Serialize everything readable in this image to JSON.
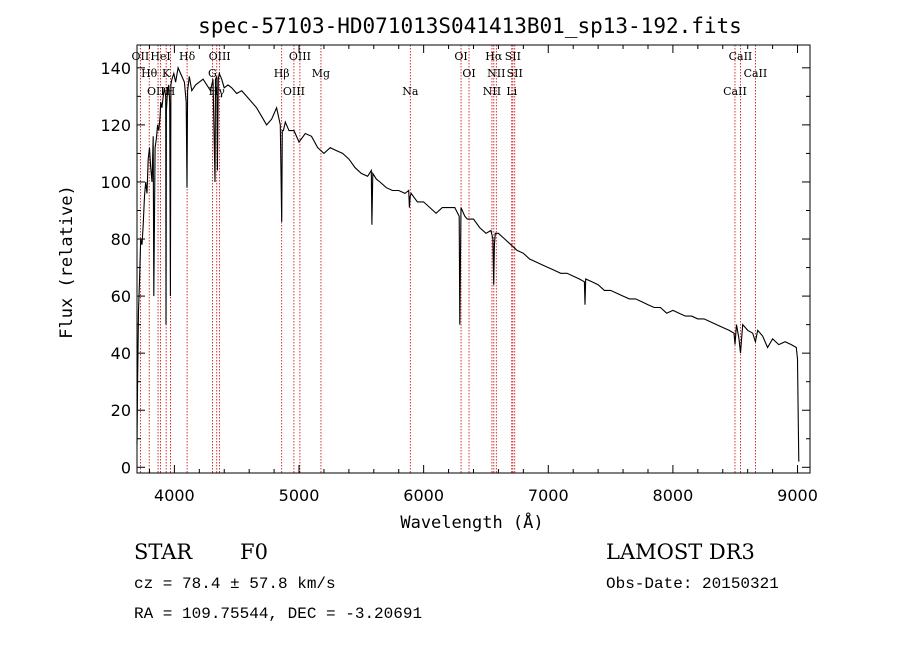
{
  "chart_data": {
    "type": "line",
    "title": "spec-57103-HD071013S041413B01_sp13-192.fits",
    "xlabel": "Wavelength (Å)",
    "ylabel": "Flux (relative)",
    "xlim": [
      3700,
      9100
    ],
    "ylim": [
      -2,
      148
    ],
    "xticks": [
      4000,
      5000,
      6000,
      7000,
      8000,
      9000
    ],
    "yticks": [
      0,
      20,
      40,
      60,
      80,
      100,
      120,
      140
    ],
    "series": [
      {
        "name": "spectrum",
        "x": [
          3700,
          3705,
          3712,
          3720,
          3730,
          3740,
          3750,
          3760,
          3770,
          3780,
          3790,
          3800,
          3810,
          3820,
          3830,
          3835,
          3845,
          3855,
          3865,
          3875,
          3885,
          3890,
          3900,
          3910,
          3920,
          3930,
          3933,
          3936,
          3945,
          3955,
          3962,
          3968,
          3972,
          3980,
          3995,
          4010,
          4030,
          4050,
          4080,
          4095,
          4101,
          4106,
          4120,
          4140,
          4170,
          4200,
          4230,
          4260,
          4290,
          4310,
          4326,
          4330,
          4340,
          4345,
          4352,
          4360,
          4380,
          4400,
          4430,
          4460,
          4500,
          4540,
          4580,
          4620,
          4660,
          4700,
          4740,
          4780,
          4820,
          4850,
          4861,
          4866,
          4875,
          4890,
          4920,
          4960,
          5000,
          5050,
          5100,
          5150,
          5200,
          5250,
          5300,
          5350,
          5400,
          5450,
          5500,
          5550,
          5580,
          5585,
          5592,
          5620,
          5650,
          5700,
          5750,
          5800,
          5850,
          5880,
          5886,
          5892,
          5900,
          5950,
          6000,
          6050,
          6100,
          6150,
          6200,
          6250,
          6285,
          6290,
          6300,
          6330,
          6350,
          6400,
          6450,
          6500,
          6540,
          6556,
          6562,
          6568,
          6575,
          6600,
          6650,
          6700,
          6750,
          6800,
          6850,
          6900,
          6950,
          7000,
          7050,
          7100,
          7150,
          7200,
          7250,
          7290,
          7295,
          7300,
          7350,
          7400,
          7450,
          7500,
          7550,
          7600,
          7650,
          7700,
          7750,
          7800,
          7850,
          7900,
          7950,
          8000,
          8050,
          8100,
          8150,
          8200,
          8250,
          8300,
          8350,
          8400,
          8450,
          8490,
          8498,
          8510,
          8530,
          8542,
          8560,
          8600,
          8640,
          8662,
          8680,
          8720,
          8760,
          8800,
          8850,
          8900,
          8950,
          8990,
          9000,
          9005,
          9010
        ],
        "values": [
          8,
          30,
          55,
          65,
          80,
          78,
          85,
          95,
          100,
          96,
          108,
          112,
          105,
          100,
          116,
          60,
          112,
          115,
          120,
          118,
          123,
          128,
          126,
          130,
          133,
          130,
          50,
          125,
          132,
          134,
          128,
          60,
          134,
          136,
          138,
          135,
          140,
          138,
          135,
          128,
          98,
          132,
          137,
          132,
          134,
          135,
          136,
          134,
          132,
          136,
          100,
          136,
          137,
          104,
          136,
          138,
          136,
          133,
          134,
          133,
          131,
          132,
          130,
          128,
          126,
          123,
          120,
          122,
          126,
          120,
          86,
          118,
          118,
          121,
          118,
          118,
          114,
          117,
          116,
          112,
          110,
          112,
          111,
          110,
          108,
          105,
          103,
          102,
          104,
          85,
          103,
          101,
          100,
          98,
          97,
          97,
          96,
          97,
          91,
          95,
          96,
          93,
          93,
          91,
          89,
          91,
          91,
          91,
          88,
          50,
          91,
          88,
          87,
          87,
          84,
          82,
          83,
          80,
          64,
          78,
          82,
          82,
          80,
          78,
          76,
          75,
          73,
          72,
          71,
          70,
          69,
          68,
          68,
          67,
          66,
          65,
          57,
          66,
          65,
          64,
          62,
          62,
          61,
          60,
          59,
          59,
          58,
          57,
          56,
          56,
          54,
          55,
          54,
          53,
          53,
          52,
          52,
          51,
          50,
          49,
          48,
          47,
          43,
          50,
          45,
          40,
          50,
          48,
          47,
          44,
          48,
          46,
          42,
          45,
          43,
          44,
          43,
          42,
          38,
          18,
          2
        ]
      }
    ],
    "lines": [
      {
        "w": 3727,
        "label": "OII"
      },
      {
        "w": 3798,
        "label": "Hθ"
      },
      {
        "w": 3869,
        "label": "OIII"
      },
      {
        "w": 3889,
        "label": "HeI"
      },
      {
        "w": 3934,
        "label": "K"
      },
      {
        "w": 3969,
        "label": "H"
      },
      {
        "w": 4102,
        "label": "Hδ"
      },
      {
        "w": 4305,
        "label": "G"
      },
      {
        "w": 4340,
        "label": "Hγ"
      },
      {
        "w": 4363,
        "label": "OIII"
      },
      {
        "w": 4861,
        "label": "Hβ"
      },
      {
        "w": 4959,
        "label": "OIII"
      },
      {
        "w": 5007,
        "label": "OIII"
      },
      {
        "w": 5176,
        "label": "Mg"
      },
      {
        "w": 5893,
        "label": "Na"
      },
      {
        "w": 6300,
        "label": "OI"
      },
      {
        "w": 6364,
        "label": "OI"
      },
      {
        "w": 6548,
        "label": "NII"
      },
      {
        "w": 6563,
        "label": "Hα"
      },
      {
        "w": 6583,
        "label": "NII"
      },
      {
        "w": 6707,
        "label": "Li"
      },
      {
        "w": 6716,
        "label": "SII"
      },
      {
        "w": 6731,
        "label": "SII"
      },
      {
        "w": 8498,
        "label": "CaII"
      },
      {
        "w": 8542,
        "label": "CaII"
      },
      {
        "w": 8662,
        "label": "CaII"
      }
    ]
  },
  "info": {
    "object_type": "STAR",
    "subclass": "F0",
    "survey": "LAMOST DR3",
    "redshift": "cz = 78.4 ± 57.8 km/s",
    "obs_date": "Obs-Date: 20150321",
    "coords": "RA = 109.75544, DEC =  -3.20691"
  },
  "colors": {
    "line_marker": "#cc0000",
    "spectrum": "#000000"
  }
}
